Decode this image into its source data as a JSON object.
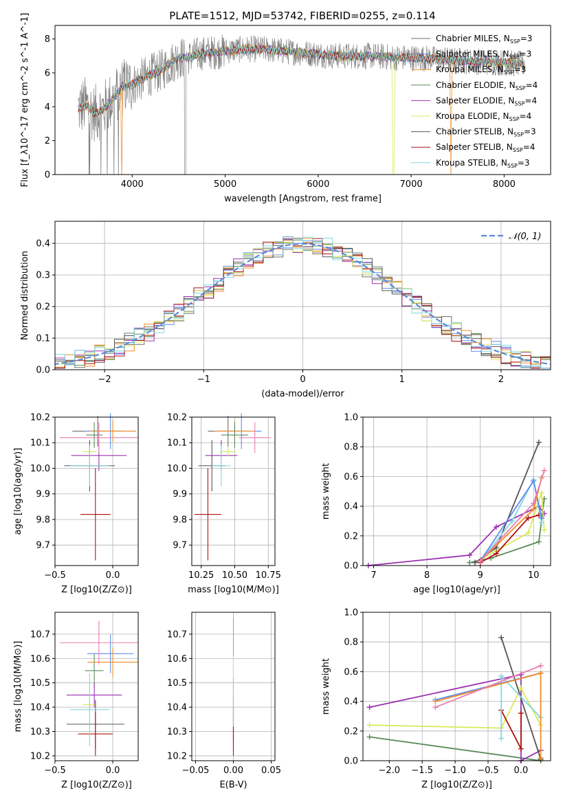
{
  "figure_title": "PLATE=1512, MJD=53742, FIBERID=0255, z=0.114",
  "colors": {
    "chabrier_miles": "#6e6e6e",
    "salpeter_miles": "#5b8def",
    "kroupa_miles": "#f08c24",
    "chabrier_elodie": "#5a8a5a",
    "salpeter_elodie": "#9b30b0",
    "kroupa_elodie": "#d9e85a",
    "chabrier_stelib": "#555555",
    "salpeter_stelib": "#b01010",
    "kroupa_stelib": "#7fd8e0",
    "pink": "#ea7cb0",
    "normal_curve": "#5b8bd6",
    "grid": "#b0b0b0"
  },
  "chart_data": [
    {
      "id": "spectrum",
      "type": "line",
      "xlabel": "wavelength [Angstrom, rest frame]",
      "ylabel": "Flux [f_λ10^-17 erg cm^-2 s^-1 A^-1]",
      "xlim": [
        3170,
        8500
      ],
      "ylim": [
        0,
        8.8
      ],
      "xticks": [
        4000,
        5000,
        6000,
        7000,
        8000
      ],
      "yticks": [
        0,
        2,
        4,
        6,
        8
      ],
      "grid": false,
      "legend_position": "top-right",
      "series": [
        {
          "name": "Chabrier MILES, N_SSP=3",
          "color": "#6e6e6e"
        },
        {
          "name": "Salpeter MILES, N_SSP=3",
          "color": "#5b8def"
        },
        {
          "name": "Kroupa MILES, N_SSP=3",
          "color": "#f08c24"
        },
        {
          "name": "Chabrier ELODIE, N_SSP=4",
          "color": "#5a8a5a"
        },
        {
          "name": "Salpeter ELODIE, N_SSP=4",
          "color": "#9b30b0"
        },
        {
          "name": "Kroupa ELODIE, N_SSP=4",
          "color": "#d9e85a"
        },
        {
          "name": "Chabrier STELIB, N_SSP=3",
          "color": "#555555"
        },
        {
          "name": "Salpeter STELIB, N_SSP=4",
          "color": "#b01010"
        },
        {
          "name": "Kroupa STELIB, N_SSP=3",
          "color": "#7fd8e0"
        }
      ],
      "continuum": [
        [
          3420,
          3.9
        ],
        [
          3500,
          4.1
        ],
        [
          3600,
          3.6
        ],
        [
          3700,
          3.9
        ],
        [
          3800,
          4.5
        ],
        [
          3900,
          5.2
        ],
        [
          4000,
          5.3
        ],
        [
          4100,
          5.6
        ],
        [
          4200,
          5.9
        ],
        [
          4300,
          6.1
        ],
        [
          4400,
          6.5
        ],
        [
          4500,
          6.9
        ],
        [
          4600,
          6.9
        ],
        [
          4700,
          7.1
        ],
        [
          4800,
          7.2
        ],
        [
          4900,
          7.2
        ],
        [
          5000,
          7.3
        ],
        [
          5200,
          7.4
        ],
        [
          5400,
          7.4
        ],
        [
          5600,
          7.3
        ],
        [
          5800,
          7.2
        ],
        [
          6000,
          7.1
        ],
        [
          6200,
          7.0
        ],
        [
          6400,
          7.0
        ],
        [
          6600,
          7.0
        ],
        [
          6800,
          6.9
        ],
        [
          7000,
          6.9
        ],
        [
          7200,
          6.85
        ],
        [
          7400,
          6.75
        ],
        [
          7600,
          6.7
        ],
        [
          7800,
          6.65
        ],
        [
          8000,
          6.6
        ],
        [
          8200,
          6.5
        ]
      ]
    },
    {
      "id": "residuals",
      "type": "histogram",
      "xlabel": "(data-model)/error",
      "ylabel": "Normed distribution",
      "xlim": [
        -2.5,
        2.5
      ],
      "ylim": [
        0,
        0.47
      ],
      "xticks": [
        -2,
        -1,
        0,
        1,
        2
      ],
      "yticks": [
        0.0,
        0.1,
        0.2,
        0.3,
        0.4
      ],
      "grid": true,
      "legend": "𝒩(0, 1)",
      "legend_position": "top-right",
      "bin_width": 0.1
    },
    {
      "id": "age_vs_Z",
      "type": "errorbar",
      "xlabel": "Z [log10(Z/Z⊙)]",
      "ylabel": "age [log10(age/yr)]",
      "xlim": [
        -0.5,
        0.22
      ],
      "ylim": [
        9.62,
        10.2
      ],
      "xticks": [
        -0.5,
        0.0
      ],
      "yticks": [
        9.7,
        9.8,
        9.9,
        10.0,
        10.1,
        10.2
      ],
      "grid": true,
      "points": [
        {
          "x": -0.13,
          "xerr": 0.22,
          "y": 10.145,
          "yerr": 0.06,
          "color": "#6e6e6e"
        },
        {
          "x": -0.02,
          "xerr": 0.22,
          "y": 10.145,
          "yerr": 0.07,
          "color": "#5b8def"
        },
        {
          "x": 0.0,
          "xerr": 0.2,
          "y": 10.145,
          "yerr": 0.04,
          "color": "#f08c24"
        },
        {
          "x": -0.16,
          "xerr": 0.07,
          "y": 10.13,
          "yerr": 0.05,
          "color": "#5a8a5a"
        },
        {
          "x": -0.12,
          "xerr": 0.24,
          "y": 10.05,
          "yerr": 0.06,
          "color": "#9b30b0"
        },
        {
          "x": -0.2,
          "xerr": 0.06,
          "y": 10.065,
          "yerr": 0.02,
          "color": "#d9e85a"
        },
        {
          "x": -0.2,
          "xerr": 0.22,
          "y": 10.01,
          "yerr": 0.1,
          "color": "#555555"
        },
        {
          "x": -0.15,
          "xerr": 0.13,
          "y": 9.82,
          "yerr": 0.18,
          "color": "#b01010"
        },
        {
          "x": -0.2,
          "xerr": 0.17,
          "y": 10.01,
          "yerr": 0.08,
          "color": "#7fd8e0"
        },
        {
          "x": -0.12,
          "xerr": 0.34,
          "y": 10.12,
          "yerr": 0.06,
          "color": "#ea7cb0"
        }
      ]
    },
    {
      "id": "age_vs_mass",
      "type": "errorbar",
      "xlabel": "mass [log10(M/M⊙)]",
      "ylabel": "",
      "xlim": [
        10.18,
        10.8
      ],
      "ylim": [
        9.62,
        10.2
      ],
      "xticks": [
        10.25,
        10.5,
        10.75
      ],
      "yticks": [
        9.7,
        9.8,
        9.9,
        10.0,
        10.1,
        10.2
      ],
      "grid": true,
      "points": [
        {
          "x": 10.45,
          "xerr": 0.15,
          "y": 10.145,
          "yerr": 0.06,
          "color": "#6e6e6e"
        },
        {
          "x": 10.55,
          "xerr": 0.15,
          "y": 10.145,
          "yerr": 0.07,
          "color": "#5b8def"
        },
        {
          "x": 10.5,
          "xerr": 0.15,
          "y": 10.145,
          "yerr": 0.04,
          "color": "#f08c24"
        },
        {
          "x": 10.5,
          "xerr": 0.1,
          "y": 10.13,
          "yerr": 0.05,
          "color": "#5a8a5a"
        },
        {
          "x": 10.4,
          "xerr": 0.12,
          "y": 10.05,
          "yerr": 0.06,
          "color": "#9b30b0"
        },
        {
          "x": 10.45,
          "xerr": 0.06,
          "y": 10.065,
          "yerr": 0.02,
          "color": "#d9e85a"
        },
        {
          "x": 10.33,
          "xerr": 0.1,
          "y": 10.01,
          "yerr": 0.1,
          "color": "#555555"
        },
        {
          "x": 10.3,
          "xerr": 0.1,
          "y": 9.82,
          "yerr": 0.18,
          "color": "#b01010"
        },
        {
          "x": 10.4,
          "xerr": 0.07,
          "y": 10.01,
          "yerr": 0.08,
          "color": "#7fd8e0"
        },
        {
          "x": 10.65,
          "xerr": 0.12,
          "y": 10.12,
          "yerr": 0.06,
          "color": "#ea7cb0"
        }
      ]
    },
    {
      "id": "weight_vs_age",
      "type": "line",
      "xlabel": "age [log10(age/yr)]",
      "ylabel": "mass weight",
      "xlim": [
        6.8,
        10.32
      ],
      "ylim": [
        0,
        1.0
      ],
      "xticks": [
        7,
        8,
        9,
        10
      ],
      "yticks": [
        0.0,
        0.2,
        0.4,
        0.6,
        0.8,
        1.0
      ],
      "grid": true,
      "series": [
        {
          "color": "#5a8a5a",
          "points": [
            [
              8.8,
              0.02
            ],
            [
              9.2,
              0.05
            ],
            [
              10.1,
              0.16
            ],
            [
              10.2,
              0.45
            ]
          ]
        },
        {
          "color": "#9b30b0",
          "points": [
            [
              6.9,
              0.0
            ],
            [
              8.8,
              0.07
            ],
            [
              9.3,
              0.26
            ],
            [
              10.1,
              0.4
            ],
            [
              10.2,
              0.35
            ]
          ]
        },
        {
          "color": "#d9e85a",
          "points": [
            [
              8.9,
              0.02
            ],
            [
              9.3,
              0.1
            ],
            [
              9.9,
              0.22
            ],
            [
              10.15,
              0.49
            ],
            [
              10.2,
              0.24
            ]
          ]
        },
        {
          "color": "#555555",
          "points": [
            [
              8.9,
              0.02
            ],
            [
              9.3,
              0.12
            ],
            [
              10.1,
              0.83
            ]
          ]
        },
        {
          "color": "#b01010",
          "points": [
            [
              9.0,
              0.02
            ],
            [
              9.3,
              0.08
            ],
            [
              9.9,
              0.32
            ],
            [
              10.1,
              0.34
            ]
          ]
        },
        {
          "color": "#7fd8e0",
          "points": [
            [
              9.0,
              0.03
            ],
            [
              9.6,
              0.3
            ],
            [
              10.0,
              0.58
            ],
            [
              10.15,
              0.29
            ]
          ]
        },
        {
          "color": "#5b8def",
          "points": [
            [
              9.0,
              0.03
            ],
            [
              10.0,
              0.57
            ],
            [
              10.15,
              0.32
            ]
          ]
        },
        {
          "color": "#f08c24",
          "points": [
            [
              9.0,
              0.03
            ],
            [
              10.0,
              0.38
            ],
            [
              10.15,
              0.59
            ]
          ]
        },
        {
          "color": "#ea7cb0",
          "points": [
            [
              9.0,
              0.03
            ],
            [
              10.0,
              0.42
            ],
            [
              10.2,
              0.64
            ]
          ]
        }
      ]
    },
    {
      "id": "mass_vs_Z",
      "type": "errorbar",
      "xlabel": "Z [log10(Z/Z⊙)]",
      "ylabel": "mass [log10(M/M⊙)]",
      "xlim": [
        -0.5,
        0.22
      ],
      "ylim": [
        10.18,
        10.79
      ],
      "xticks": [
        -0.5,
        0.0
      ],
      "yticks": [
        10.2,
        10.3,
        10.4,
        10.5,
        10.6,
        10.7
      ],
      "grid": true,
      "points": [
        {
          "x": -0.16,
          "xerr": 0.08,
          "y": 10.55,
          "yerr": 0.07,
          "color": "#5a8a5a"
        },
        {
          "x": -0.02,
          "xerr": 0.2,
          "y": 10.62,
          "yerr": 0.08,
          "color": "#5b8def"
        },
        {
          "x": 0.0,
          "xerr": 0.22,
          "y": 10.585,
          "yerr": 0.06,
          "color": "#f08c24"
        },
        {
          "x": -0.16,
          "xerr": 0.24,
          "y": 10.45,
          "yerr": 0.05,
          "color": "#9b30b0"
        },
        {
          "x": -0.2,
          "xerr": 0.06,
          "y": 10.41,
          "yerr": 0.03,
          "color": "#d9e85a"
        },
        {
          "x": -0.15,
          "xerr": 0.25,
          "y": 10.33,
          "yerr": 0.1,
          "color": "#555555"
        },
        {
          "x": -0.15,
          "xerr": 0.15,
          "y": 10.29,
          "yerr": 0.09,
          "color": "#b01010"
        },
        {
          "x": -0.2,
          "xerr": 0.17,
          "y": 10.39,
          "yerr": 0.15,
          "color": "#7fd8e0"
        },
        {
          "x": -0.12,
          "xerr": 0.34,
          "y": 10.665,
          "yerr": 0.09,
          "color": "#ea7cb0"
        }
      ]
    },
    {
      "id": "mass_vs_ebv",
      "type": "errorbar",
      "xlabel": "E(B-V)",
      "ylabel": "",
      "xlim": [
        -0.055,
        0.055
      ],
      "ylim": [
        10.18,
        10.79
      ],
      "xticks": [
        -0.05,
        0.0,
        0.05
      ],
      "yticks": [
        10.2,
        10.3,
        10.4,
        10.5,
        10.6,
        10.7
      ],
      "grid": true,
      "points": [
        {
          "x": 0.0,
          "xerr": 0.0,
          "y": 10.5,
          "yerr": 0.27,
          "color": "#ea7cb0"
        },
        {
          "x": 0.0,
          "xerr": 0.0,
          "y": 10.42,
          "yerr": 0.19,
          "color": "#d9e85a"
        },
        {
          "x": 0.0,
          "xerr": 0.0,
          "y": 10.35,
          "yerr": 0.09,
          "color": "#555555"
        },
        {
          "x": 0.0,
          "xerr": 0.0,
          "y": 10.3,
          "yerr": 0.1,
          "color": "#b01010"
        },
        {
          "x": 0.0,
          "xerr": 0.0,
          "y": 10.42,
          "yerr": 0.1,
          "color": "#7fd8e0"
        }
      ]
    },
    {
      "id": "weight_vs_Z",
      "type": "line",
      "xlabel": "Z [log10(Z/Z⊙)]",
      "ylabel": "mass weight",
      "xlim": [
        -2.4,
        0.45
      ],
      "ylim": [
        0,
        1.0
      ],
      "xticks": [
        -2.0,
        -1.5,
        -1.0,
        -0.5,
        0.0
      ],
      "yticks": [
        0.0,
        0.2,
        0.4,
        0.6,
        0.8,
        1.0
      ],
      "grid": true,
      "series": [
        {
          "color": "#5a8a5a",
          "points": [
            [
              -2.3,
              0.16
            ],
            [
              0.3,
              0.0
            ],
            [
              0.3,
              0.01
            ]
          ]
        },
        {
          "color": "#9b30b0",
          "points": [
            [
              -2.3,
              0.36
            ],
            [
              0.0,
              0.58
            ],
            [
              0.0,
              0.0
            ],
            [
              0.3,
              0.07
            ]
          ]
        },
        {
          "color": "#d9e85a",
          "points": [
            [
              -2.3,
              0.24
            ],
            [
              -0.3,
              0.22
            ],
            [
              0.0,
              0.49
            ],
            [
              0.3,
              0.24
            ]
          ]
        },
        {
          "color": "#555555",
          "points": [
            [
              -0.3,
              0.83
            ],
            [
              0.3,
              0.01
            ]
          ]
        },
        {
          "color": "#b01010",
          "points": [
            [
              -0.3,
              0.34
            ],
            [
              0.0,
              0.08
            ],
            [
              0.0,
              0.32
            ]
          ]
        },
        {
          "color": "#7fd8e0",
          "points": [
            [
              -0.3,
              0.15
            ],
            [
              -0.3,
              0.57
            ],
            [
              0.3,
              0.29
            ]
          ]
        },
        {
          "color": "#5b8def",
          "points": [
            [
              -1.3,
              0.41
            ],
            [
              0.3,
              0.59
            ]
          ]
        },
        {
          "color": "#f08c24",
          "points": [
            [
              -1.3,
              0.4
            ],
            [
              0.3,
              0.59
            ],
            [
              0.3,
              0.02
            ]
          ]
        },
        {
          "color": "#ea7cb0",
          "points": [
            [
              -1.3,
              0.36
            ],
            [
              0.3,
              0.64
            ]
          ]
        }
      ]
    }
  ]
}
